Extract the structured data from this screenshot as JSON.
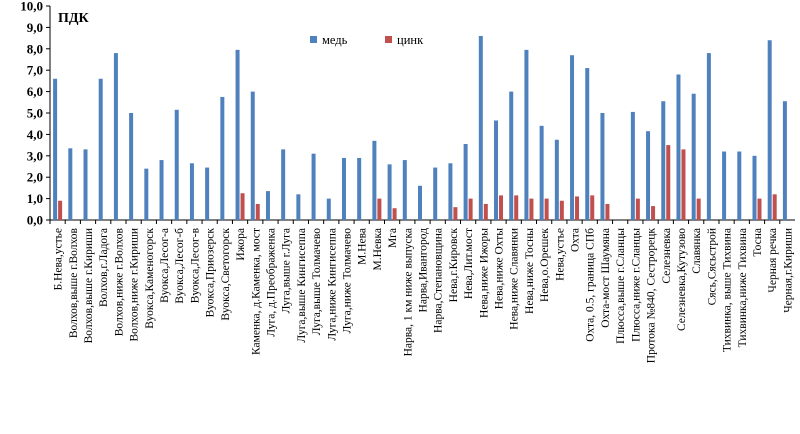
{
  "chart_data": {
    "type": "bar",
    "title": "ПДК",
    "ylim": [
      0,
      10
    ],
    "yticks": [
      "0,0",
      "1,0",
      "2,0",
      "3,0",
      "4,0",
      "5,0",
      "6,0",
      "7,0",
      "8,0",
      "9,0",
      "10,0"
    ],
    "grid": false,
    "legend_position": "top-center",
    "colors": {
      "медь": "#4f81bd",
      "цинк": "#c0504d"
    },
    "categories": [
      "Б.Нева,устье",
      "Волхов,выше г.Волхов",
      "Волхов,выше г.Кириши",
      "Волхов,г.Ладога",
      "Волхов,ниже г.Волхов",
      "Волхов,ниже г.Кириши",
      "Вуокса,Каменогорск",
      "Вуокса,Лесог-а",
      "Вуокса,Лесог-б",
      "Вуокса,Лесог-в",
      "Вуокса,Приозерск",
      "Вуокса,Светогорск",
      "Ижора",
      "Каменка, д.Каменка, мост",
      "Луга, д.Преображенка",
      "Луга,выше г.Луга",
      "Луга,выше Кингисеппа",
      "Луга,выше Толмачево",
      "Луга,ниже Кингисеппа",
      "Луга,ниже Толмачево",
      "М.Нева",
      "М.Невка",
      "Мга",
      "Нарва, 1 км ниже выпуска",
      "Нарва,Ивангород",
      "Нарва,Степановщина",
      "Нева,г.Кировск",
      "Нева,Лит.мост",
      "Нева,ниже Ижоры",
      "Нева,ниже Охты",
      "Нева,ниже Славянки",
      "Нева,ниже Тосны",
      "Нева,о.Орешек",
      "Нева,устье",
      "Охта",
      "Охта, 0.5, граница СПб",
      "Охта-мост Шаумяна",
      "Плюсса,выше г.Сланцы",
      "Плюсса,ниже г.Сланцы",
      "Протока №840, Сестрорецк",
      "Селезневка",
      "Селезневка,Кутузово",
      "Славянка",
      "Сясь,Сясьстрой",
      "Тихвинка, выше Тихвина",
      "Тихвинка,ниже Тихвина",
      "Тосна",
      "Черная речка",
      "Черная,г.Кириши"
    ],
    "series": [
      {
        "name": "медь",
        "values": [
          6.6,
          3.35,
          3.3,
          6.6,
          7.8,
          5.0,
          2.4,
          2.8,
          5.15,
          2.65,
          2.45,
          5.75,
          7.95,
          6.0,
          1.35,
          3.3,
          1.2,
          3.1,
          1.0,
          2.9,
          2.9,
          3.7,
          2.6,
          2.8,
          1.6,
          2.45,
          2.65,
          3.55,
          8.6,
          4.65,
          6.0,
          7.95,
          4.4,
          3.75,
          7.7,
          7.1,
          5.0,
          0,
          5.05,
          4.15,
          5.55,
          6.8,
          5.9,
          7.8,
          3.2,
          3.2,
          3.0,
          8.4,
          5.55
        ]
      },
      {
        "name": "цинк",
        "values": [
          0.9,
          0,
          0,
          0,
          0,
          0,
          0,
          0,
          0,
          0,
          0,
          0,
          1.25,
          0.75,
          0,
          0,
          0,
          0,
          0,
          0,
          0,
          1.0,
          0.55,
          0,
          0,
          0,
          0.6,
          1.0,
          0.75,
          1.15,
          1.15,
          1.0,
          1.0,
          0.9,
          1.1,
          1.15,
          0.75,
          0,
          1.0,
          0.65,
          3.5,
          3.3,
          1.0,
          0,
          0,
          0,
          1.0,
          1.2,
          0
        ]
      }
    ]
  }
}
